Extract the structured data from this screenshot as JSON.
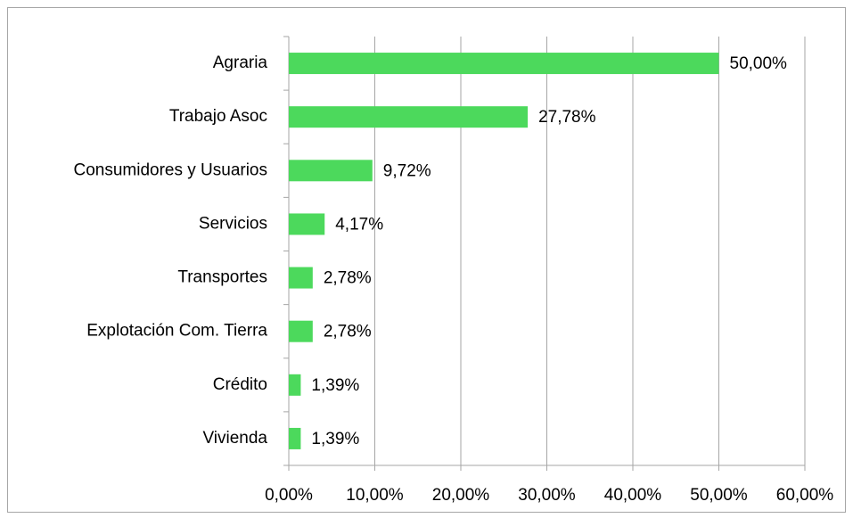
{
  "chart_data": {
    "type": "bar",
    "orientation": "horizontal",
    "categories": [
      "Agraria",
      "Trabajo Asoc",
      "Consumidores y Usuarios",
      "Servicios",
      "Transportes",
      "Explotación Com. Tierra",
      "Crédito",
      "Vivienda"
    ],
    "values": [
      50,
      27.78,
      9.72,
      4.17,
      2.78,
      2.78,
      1.39,
      1.39
    ],
    "value_labels": [
      "50,00%",
      "27,78%",
      "9,72%",
      "4,17%",
      "2,78%",
      "2,78%",
      "1,39%",
      "1,39%"
    ],
    "color": "#4cd95c",
    "xlim": [
      0,
      60
    ],
    "xticks": [
      {
        "value": 0,
        "label": "0,00%"
      },
      {
        "value": 10,
        "label": "10,00%"
      },
      {
        "value": 20,
        "label": "20,00%"
      },
      {
        "value": 30,
        "label": "30,00%"
      },
      {
        "value": 40,
        "label": "40,00%"
      },
      {
        "value": 50,
        "label": "50,00%"
      },
      {
        "value": 60,
        "label": "60,00%"
      }
    ],
    "grid": true
  }
}
